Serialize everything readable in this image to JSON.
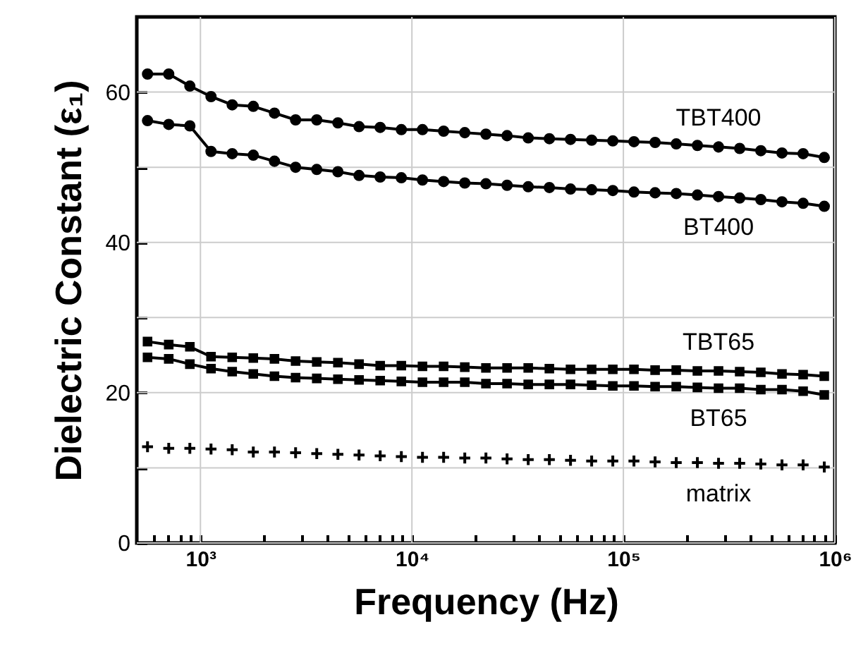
{
  "chart_data": {
    "type": "line",
    "xlabel": "Frequency (Hz)",
    "ylabel": "Dielectric Constant (ε₁)",
    "log": "x",
    "grid": true,
    "xlim": [
      500,
      1000000
    ],
    "xticks": [
      {
        "value": 600,
        "label": null
      },
      {
        "value": 700,
        "label": null
      },
      {
        "value": 800,
        "label": null
      },
      {
        "value": 900,
        "label": null
      },
      {
        "value": 1000,
        "label": "10³"
      },
      {
        "value": 2000,
        "label": null
      },
      {
        "value": 3000,
        "label": null
      },
      {
        "value": 4000,
        "label": null
      },
      {
        "value": 5000,
        "label": null
      },
      {
        "value": 6000,
        "label": null
      },
      {
        "value": 7000,
        "label": null
      },
      {
        "value": 8000,
        "label": null
      },
      {
        "value": 9000,
        "label": null
      },
      {
        "value": 10000,
        "label": "10⁴"
      },
      {
        "value": 20000,
        "label": null
      },
      {
        "value": 30000,
        "label": null
      },
      {
        "value": 40000,
        "label": null
      },
      {
        "value": 50000,
        "label": null
      },
      {
        "value": 60000,
        "label": null
      },
      {
        "value": 70000,
        "label": null
      },
      {
        "value": 80000,
        "label": null
      },
      {
        "value": 90000,
        "label": null
      },
      {
        "value": 100000,
        "label": "10⁵"
      },
      {
        "value": 200000,
        "label": null
      },
      {
        "value": 300000,
        "label": null
      },
      {
        "value": 400000,
        "label": null
      },
      {
        "value": 500000,
        "label": null
      },
      {
        "value": 600000,
        "label": null
      },
      {
        "value": 700000,
        "label": null
      },
      {
        "value": 800000,
        "label": null
      },
      {
        "value": 900000,
        "label": null
      },
      {
        "value": 1000000,
        "label": "10⁶"
      }
    ],
    "ylim": [
      0,
      70
    ],
    "yticks": [
      0,
      {
        "value": 10,
        "label": null
      },
      20,
      {
        "value": 30,
        "label": null
      },
      40,
      {
        "value": 50,
        "label": null
      },
      60
    ],
    "x": [
      562,
      708,
      891,
      1122,
      1413,
      1778,
      2239,
      2818,
      3548,
      4467,
      5623,
      7079,
      8913,
      11220,
      14125,
      17783,
      22387,
      28184,
      35481,
      44668,
      56234,
      70795,
      89125,
      112202,
      141254,
      177828,
      223872,
      281838,
      354813,
      446684,
      562341,
      707946,
      891251
    ],
    "series": [
      {
        "name": "TBT400",
        "marker": "circle",
        "color": "#000000",
        "values": [
          62.4,
          62.4,
          60.8,
          59.4,
          58.3,
          58.1,
          57.2,
          56.3,
          56.3,
          55.9,
          55.4,
          55.3,
          55.0,
          55.0,
          54.8,
          54.6,
          54.4,
          54.2,
          53.9,
          53.8,
          53.7,
          53.6,
          53.5,
          53.4,
          53.3,
          53.1,
          52.9,
          52.7,
          52.5,
          52.2,
          51.9,
          51.8,
          51.3
        ]
      },
      {
        "name": "BT400",
        "marker": "circle",
        "color": "#000000",
        "values": [
          56.2,
          55.7,
          55.5,
          52.1,
          51.8,
          51.6,
          50.8,
          50.0,
          49.7,
          49.4,
          48.9,
          48.7,
          48.6,
          48.3,
          48.1,
          47.9,
          47.8,
          47.6,
          47.4,
          47.3,
          47.1,
          47.0,
          46.9,
          46.7,
          46.6,
          46.5,
          46.3,
          46.1,
          45.9,
          45.7,
          45.4,
          45.2,
          44.8
        ]
      },
      {
        "name": "TBT65",
        "marker": "square",
        "color": "#000000",
        "values": [
          26.8,
          26.4,
          26.1,
          24.8,
          24.7,
          24.6,
          24.5,
          24.2,
          24.1,
          24.0,
          23.8,
          23.6,
          23.6,
          23.5,
          23.5,
          23.4,
          23.3,
          23.3,
          23.3,
          23.2,
          23.1,
          23.1,
          23.1,
          23.1,
          23.0,
          23.0,
          22.9,
          22.9,
          22.8,
          22.7,
          22.5,
          22.4,
          22.2
        ]
      },
      {
        "name": "BT65",
        "marker": "square",
        "color": "#000000",
        "values": [
          24.7,
          24.5,
          23.8,
          23.2,
          22.8,
          22.5,
          22.2,
          22.0,
          21.9,
          21.8,
          21.7,
          21.6,
          21.5,
          21.4,
          21.4,
          21.4,
          21.2,
          21.2,
          21.1,
          21.1,
          21.1,
          21.0,
          20.9,
          20.9,
          20.8,
          20.8,
          20.7,
          20.6,
          20.6,
          20.4,
          20.4,
          20.2,
          19.7
        ]
      },
      {
        "name": "matrix",
        "type": "scatter",
        "marker": "cross",
        "color": "#000000",
        "values": [
          12.8,
          12.6,
          12.6,
          12.5,
          12.4,
          12.1,
          12.1,
          12.0,
          11.9,
          11.8,
          11.7,
          11.6,
          11.5,
          11.4,
          11.4,
          11.3,
          11.3,
          11.2,
          11.1,
          11.1,
          11.0,
          10.9,
          10.9,
          10.9,
          10.8,
          10.7,
          10.7,
          10.6,
          10.6,
          10.5,
          10.4,
          10.4,
          10.1
        ]
      }
    ]
  }
}
